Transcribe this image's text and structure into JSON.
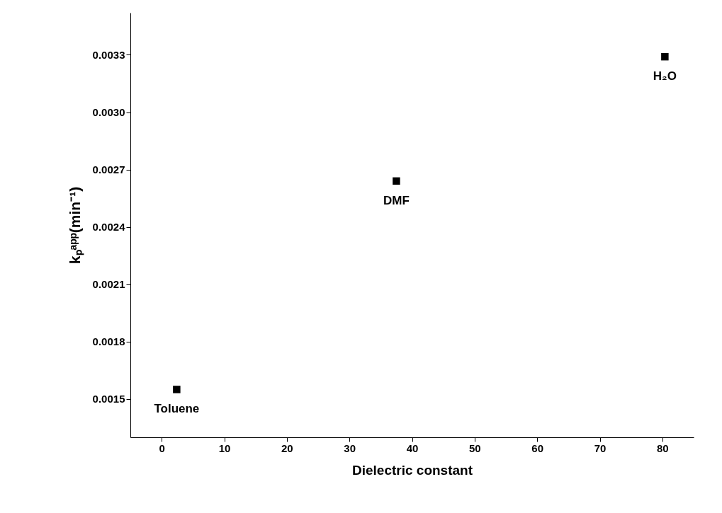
{
  "chart_data": {
    "type": "scatter",
    "xlabel": "Dielectric constant",
    "ylabel": "kₚᵃᵖᵖ(min⁻¹)",
    "x": [
      2.4,
      37.5,
      80.4
    ],
    "series": [
      {
        "color": "#000000",
        "values": [
          0.00155,
          0.00264,
          0.00329
        ]
      }
    ],
    "marker": "square",
    "grid": false,
    "xlim": [
      -5,
      85
    ],
    "xticks": [
      0,
      10,
      20,
      30,
      40,
      50,
      60,
      70,
      80
    ],
    "ylim": [
      0.0013,
      0.00352
    ],
    "yticks": [
      0.0015,
      0.0018,
      0.0021,
      0.0024,
      0.0027,
      {
        "value": 0.003,
        "label": "0.0030"
      },
      0.0033
    ],
    "annotations": [
      {
        "text": "Toluene",
        "x": 2.4,
        "y": 0.00155
      },
      {
        "text": "DMF",
        "x": 37.5,
        "y": 0.00264
      },
      {
        "text": "H₂O",
        "x": 80.4,
        "y": 0.00329
      }
    ]
  }
}
